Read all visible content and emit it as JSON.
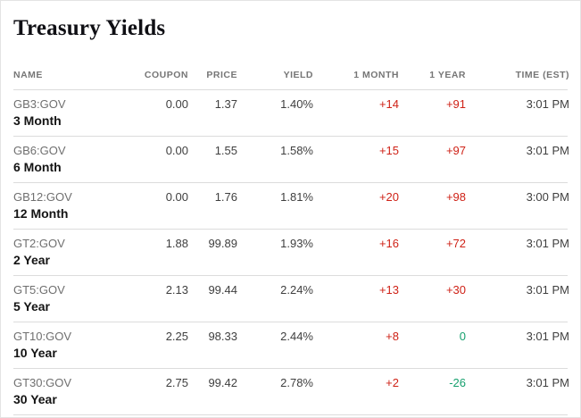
{
  "page": {
    "title": "Treasury Yields"
  },
  "colors": {
    "red": "#cf2217",
    "green": "#16a06e"
  },
  "table": {
    "columns": [
      "Name",
      "Coupon",
      "Price",
      "Yield",
      "1 Month",
      "1 Year",
      "Time (EST)"
    ],
    "rows": [
      {
        "ticker": "GB3:GOV",
        "name": "3 Month",
        "coupon": "0.00",
        "price": "1.37",
        "yield": "1.40%",
        "chg_1m": "+14",
        "chg_1m_tone": "red",
        "chg_1y": "+91",
        "chg_1y_tone": "red",
        "time": "3:01 PM"
      },
      {
        "ticker": "GB6:GOV",
        "name": "6 Month",
        "coupon": "0.00",
        "price": "1.55",
        "yield": "1.58%",
        "chg_1m": "+15",
        "chg_1m_tone": "red",
        "chg_1y": "+97",
        "chg_1y_tone": "red",
        "time": "3:01 PM"
      },
      {
        "ticker": "GB12:GOV",
        "name": "12 Month",
        "coupon": "0.00",
        "price": "1.76",
        "yield": "1.81%",
        "chg_1m": "+20",
        "chg_1m_tone": "red",
        "chg_1y": "+98",
        "chg_1y_tone": "red",
        "time": "3:00 PM"
      },
      {
        "ticker": "GT2:GOV",
        "name": "2 Year",
        "coupon": "1.88",
        "price": "99.89",
        "yield": "1.93%",
        "chg_1m": "+16",
        "chg_1m_tone": "red",
        "chg_1y": "+72",
        "chg_1y_tone": "red",
        "time": "3:01 PM"
      },
      {
        "ticker": "GT5:GOV",
        "name": "5 Year",
        "coupon": "2.13",
        "price": "99.44",
        "yield": "2.24%",
        "chg_1m": "+13",
        "chg_1m_tone": "red",
        "chg_1y": "+30",
        "chg_1y_tone": "red",
        "time": "3:01 PM"
      },
      {
        "ticker": "GT10:GOV",
        "name": "10 Year",
        "coupon": "2.25",
        "price": "98.33",
        "yield": "2.44%",
        "chg_1m": "+8",
        "chg_1m_tone": "red",
        "chg_1y": "0",
        "chg_1y_tone": "green",
        "time": "3:01 PM"
      },
      {
        "ticker": "GT30:GOV",
        "name": "30 Year",
        "coupon": "2.75",
        "price": "99.42",
        "yield": "2.78%",
        "chg_1m": "+2",
        "chg_1m_tone": "red",
        "chg_1y": "-26",
        "chg_1y_tone": "green",
        "time": "3:01 PM"
      }
    ]
  }
}
